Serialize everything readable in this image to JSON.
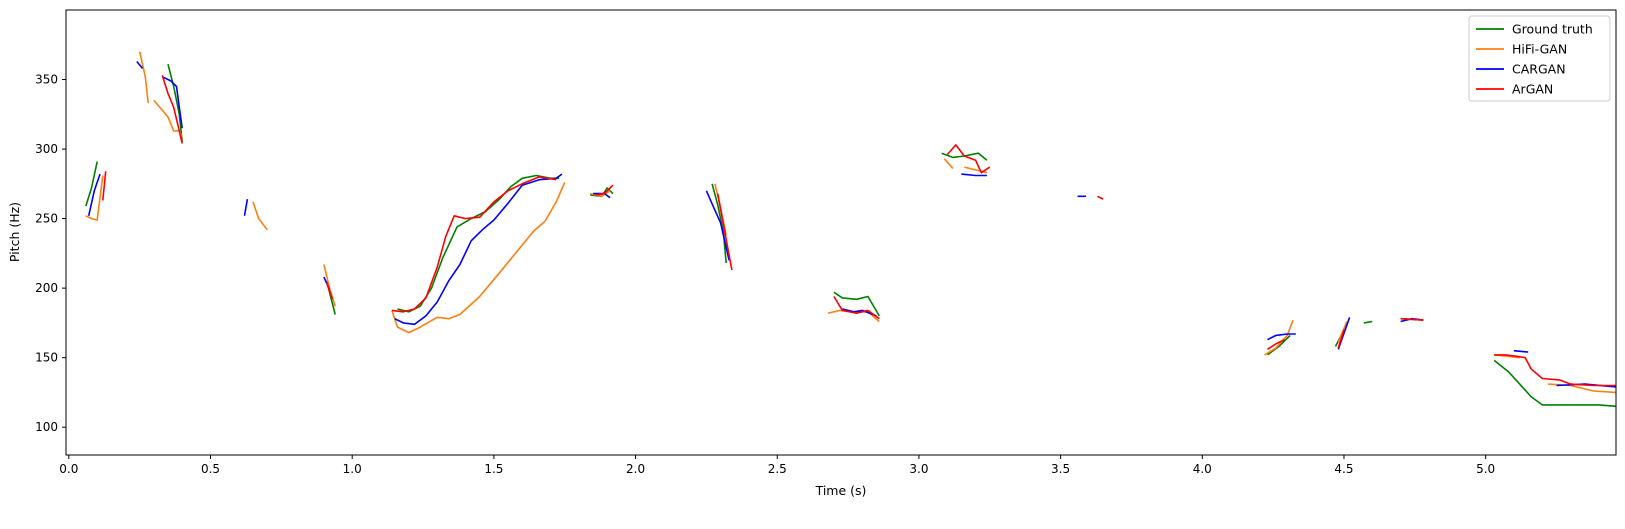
{
  "chart_data": {
    "type": "line",
    "xlabel": "Time (s)",
    "ylabel": "Pitch (Hz)",
    "xlim": [
      -0.01,
      5.46
    ],
    "ylim": [
      80,
      400
    ],
    "xticks": [
      0.0,
      0.5,
      1.0,
      1.5,
      2.0,
      2.5,
      3.0,
      3.5,
      4.0,
      4.5,
      5.0
    ],
    "xtick_labels": [
      "0.0",
      "0.5",
      "1.0",
      "1.5",
      "2.0",
      "2.5",
      "3.0",
      "3.5",
      "4.0",
      "4.5",
      "5.0"
    ],
    "yticks": [
      100,
      150,
      200,
      250,
      300,
      350
    ],
    "ytick_labels": [
      "100",
      "150",
      "200",
      "250",
      "300",
      "350"
    ],
    "grid": false,
    "legend_position": "top-right",
    "series": [
      {
        "name": "Ground truth",
        "color": "#008000",
        "segments": [
          [
            [
              0.06,
              259
            ],
            [
              0.08,
              272
            ],
            [
              0.1,
              291
            ]
          ],
          [
            [
              0.35,
              361
            ],
            [
              0.37,
              345
            ],
            [
              0.39,
              325
            ],
            [
              0.4,
              305
            ]
          ],
          [
            [
              0.91,
              205
            ],
            [
              0.94,
              181
            ]
          ],
          [
            [
              1.16,
              185
            ],
            [
              1.2,
              183
            ],
            [
              1.24,
              187
            ],
            [
              1.28,
              200
            ],
            [
              1.32,
              222
            ],
            [
              1.37,
              244
            ],
            [
              1.42,
              250
            ],
            [
              1.47,
              255
            ],
            [
              1.52,
              264
            ],
            [
              1.56,
              273
            ],
            [
              1.6,
              279
            ],
            [
              1.65,
              281
            ],
            [
              1.7,
              279
            ],
            [
              1.73,
              279
            ]
          ],
          [
            [
              1.84,
              267
            ],
            [
              1.88,
              266
            ],
            [
              1.9,
              272
            ],
            [
              1.92,
              268
            ]
          ],
          [
            [
              2.27,
              275
            ],
            [
              2.29,
              260
            ],
            [
              2.31,
              240
            ],
            [
              2.32,
              218
            ]
          ],
          [
            [
              2.7,
              197
            ],
            [
              2.73,
              193
            ],
            [
              2.78,
              192
            ],
            [
              2.82,
              194
            ],
            [
              2.86,
              180
            ]
          ],
          [
            [
              3.08,
              297
            ],
            [
              3.12,
              294
            ],
            [
              3.16,
              295
            ],
            [
              3.21,
              297
            ],
            [
              3.24,
              292
            ]
          ],
          [
            [
              4.23,
              152
            ],
            [
              4.27,
              158
            ],
            [
              4.31,
              166
            ]
          ],
          [
            [
              4.47,
              158
            ],
            [
              4.5,
              170
            ]
          ],
          [
            [
              4.57,
              175
            ],
            [
              4.6,
              176
            ]
          ],
          [
            [
              4.7,
              178
            ],
            [
              4.78,
              177
            ]
          ],
          [
            [
              5.03,
              148
            ],
            [
              5.08,
              140
            ],
            [
              5.12,
              131
            ],
            [
              5.16,
              122
            ],
            [
              5.2,
              116
            ],
            [
              5.3,
              116
            ],
            [
              5.4,
              116
            ],
            [
              5.46,
              115
            ]
          ]
        ]
      },
      {
        "name": "HiFi-GAN",
        "color": "#ff7f0e",
        "segments": [
          [
            [
              0.06,
              252
            ],
            [
              0.08,
              250
            ],
            [
              0.1,
              249
            ],
            [
              0.12,
              281
            ]
          ],
          [
            [
              0.25,
              370
            ],
            [
              0.27,
              352
            ],
            [
              0.28,
              333
            ]
          ],
          [
            [
              0.3,
              335
            ],
            [
              0.33,
              328
            ],
            [
              0.35,
              323
            ],
            [
              0.37,
              313
            ],
            [
              0.39,
              313
            ],
            [
              0.4,
              309
            ]
          ],
          [
            [
              0.65,
              262
            ],
            [
              0.67,
              250
            ],
            [
              0.7,
              242
            ]
          ],
          [
            [
              0.9,
              217
            ],
            [
              0.92,
              200
            ],
            [
              0.94,
              187
            ]
          ],
          [
            [
              1.14,
              184
            ],
            [
              1.16,
              172
            ],
            [
              1.2,
              168
            ],
            [
              1.24,
              172
            ],
            [
              1.3,
              179
            ],
            [
              1.34,
              178
            ],
            [
              1.38,
              181
            ],
            [
              1.45,
              194
            ],
            [
              1.52,
              211
            ],
            [
              1.58,
              226
            ],
            [
              1.64,
              241
            ],
            [
              1.68,
              248
            ],
            [
              1.72,
              262
            ],
            [
              1.75,
              276
            ]
          ],
          [
            [
              1.84,
              268
            ],
            [
              1.88,
              266
            ],
            [
              1.91,
              270
            ]
          ],
          [
            [
              2.28,
              275
            ],
            [
              2.3,
              258
            ],
            [
              2.32,
              238
            ]
          ],
          [
            [
              2.68,
              182
            ],
            [
              2.72,
              184
            ],
            [
              2.76,
              183
            ],
            [
              2.82,
              183
            ],
            [
              2.86,
              176
            ]
          ],
          [
            [
              3.09,
              293
            ],
            [
              3.12,
              286
            ]
          ],
          [
            [
              3.16,
              287
            ],
            [
              3.2,
              285
            ],
            [
              3.24,
              283
            ]
          ],
          [
            [
              4.22,
              152
            ],
            [
              4.26,
              157
            ],
            [
              4.3,
              166
            ],
            [
              4.32,
              177
            ]
          ],
          [
            [
              4.48,
              161
            ],
            [
              4.51,
              176
            ]
          ],
          [
            [
              5.03,
              152
            ],
            [
              5.08,
              151
            ],
            [
              5.12,
              150
            ]
          ],
          [
            [
              5.22,
              131
            ],
            [
              5.3,
              130
            ],
            [
              5.38,
              126
            ],
            [
              5.46,
              125
            ]
          ]
        ]
      },
      {
        "name": "CARGAN",
        "color": "#0000ff",
        "segments": [
          [
            [
              0.07,
              252
            ],
            [
              0.09,
              270
            ],
            [
              0.11,
              282
            ]
          ],
          [
            [
              0.24,
              363
            ],
            [
              0.26,
              358
            ]
          ],
          [
            [
              0.33,
              352
            ],
            [
              0.36,
              349
            ],
            [
              0.38,
              345
            ],
            [
              0.39,
              330
            ],
            [
              0.4,
              315
            ]
          ],
          [
            [
              0.62,
              252
            ],
            [
              0.63,
              264
            ]
          ],
          [
            [
              0.9,
              208
            ],
            [
              0.92,
              199
            ]
          ],
          [
            [
              1.15,
              178
            ],
            [
              1.18,
              175
            ],
            [
              1.22,
              174
            ],
            [
              1.26,
              180
            ],
            [
              1.3,
              190
            ],
            [
              1.34,
              205
            ],
            [
              1.38,
              217
            ],
            [
              1.42,
              234
            ],
            [
              1.46,
              242
            ],
            [
              1.5,
              249
            ],
            [
              1.55,
              261
            ],
            [
              1.6,
              274
            ],
            [
              1.66,
              278
            ],
            [
              1.72,
              279
            ],
            [
              1.74,
              282
            ]
          ],
          [
            [
              1.85,
              268
            ],
            [
              1.89,
              268
            ],
            [
              1.91,
              265
            ]
          ],
          [
            [
              2.25,
              270
            ],
            [
              2.28,
              256
            ],
            [
              2.3,
              247
            ],
            [
              2.33,
              220
            ]
          ],
          [
            [
              2.73,
              185
            ],
            [
              2.77,
              183
            ],
            [
              2.8,
              184
            ],
            [
              2.85,
              180
            ]
          ],
          [
            [
              3.15,
              282
            ],
            [
              3.2,
              281
            ],
            [
              3.24,
              281
            ]
          ],
          [
            [
              3.56,
              266
            ],
            [
              3.59,
              266
            ]
          ],
          [
            [
              4.23,
              163
            ],
            [
              4.26,
              166
            ],
            [
              4.3,
              167
            ],
            [
              4.33,
              167
            ]
          ],
          [
            [
              4.48,
              156
            ],
            [
              4.52,
              179
            ]
          ],
          [
            [
              4.7,
              176
            ],
            [
              4.74,
              178
            ],
            [
              4.78,
              177
            ]
          ],
          [
            [
              5.1,
              155
            ],
            [
              5.15,
              154
            ]
          ],
          [
            [
              5.25,
              130
            ],
            [
              5.35,
              131
            ],
            [
              5.46,
              129
            ]
          ]
        ]
      },
      {
        "name": "ArGAN",
        "color": "#ff0000",
        "segments": [
          [
            [
              0.12,
              263
            ],
            [
              0.13,
              284
            ]
          ],
          [
            [
              0.33,
              353
            ],
            [
              0.35,
              340
            ],
            [
              0.37,
              330
            ],
            [
              0.39,
              313
            ],
            [
              0.4,
              304
            ]
          ],
          [
            [
              0.91,
              204
            ],
            [
              0.93,
              192
            ]
          ],
          [
            [
              1.14,
              184
            ],
            [
              1.18,
              183
            ],
            [
              1.22,
              185
            ],
            [
              1.26,
              193
            ],
            [
              1.3,
              215
            ],
            [
              1.33,
              237
            ],
            [
              1.36,
              252
            ],
            [
              1.4,
              250
            ],
            [
              1.45,
              251
            ],
            [
              1.5,
              262
            ],
            [
              1.55,
              270
            ],
            [
              1.6,
              275
            ],
            [
              1.66,
              280
            ],
            [
              1.72,
              278
            ]
          ],
          [
            [
              1.86,
              267
            ],
            [
              1.89,
              268
            ],
            [
              1.92,
              274
            ]
          ],
          [
            [
              2.29,
              268
            ],
            [
              2.32,
              235
            ],
            [
              2.34,
              213
            ]
          ],
          [
            [
              2.7,
              194
            ],
            [
              2.73,
              184
            ],
            [
              2.78,
              182
            ],
            [
              2.82,
              184
            ],
            [
              2.86,
              178
            ]
          ],
          [
            [
              3.1,
              296
            ],
            [
              3.13,
              303
            ],
            [
              3.16,
              295
            ],
            [
              3.2,
              292
            ],
            [
              3.22,
              283
            ],
            [
              3.25,
              287
            ]
          ],
          [
            [
              3.63,
              266
            ],
            [
              3.65,
              264
            ]
          ],
          [
            [
              4.23,
              156
            ],
            [
              4.26,
              160
            ],
            [
              4.29,
              163
            ]
          ],
          [
            [
              4.48,
              157
            ],
            [
              4.5,
              170
            ]
          ],
          [
            [
              4.7,
              178
            ],
            [
              4.78,
              177
            ]
          ],
          [
            [
              5.03,
              152
            ],
            [
              5.07,
              152
            ],
            [
              5.11,
              151
            ],
            [
              5.14,
              150
            ],
            [
              5.16,
              142
            ],
            [
              5.2,
              135
            ],
            [
              5.26,
              134
            ],
            [
              5.3,
              131
            ],
            [
              5.38,
              130
            ],
            [
              5.46,
              130
            ]
          ]
        ]
      }
    ]
  }
}
